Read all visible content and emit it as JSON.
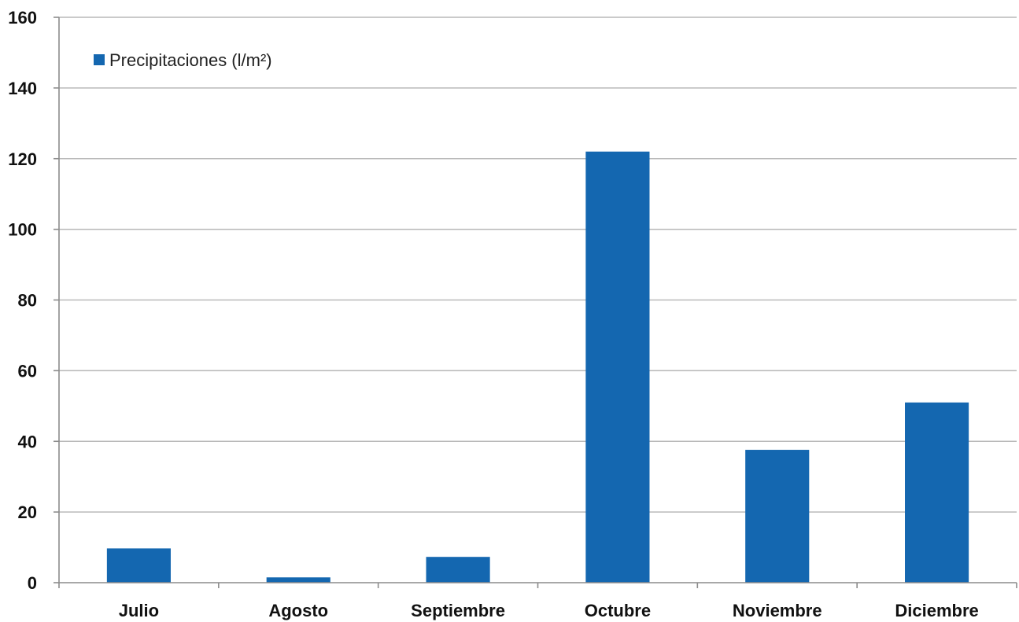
{
  "chart_data": {
    "type": "bar",
    "categories": [
      "Julio",
      "Agosto",
      "Septiembre",
      "Octubre",
      "Noviembre",
      "Diciembre"
    ],
    "series": [
      {
        "name": "Precipitaciones (l/m²)",
        "values": [
          9.7,
          1.5,
          7.3,
          122.0,
          37.6,
          51.0
        ],
        "color": "#1467b0"
      }
    ],
    "yticks": [
      "0",
      "20",
      "40",
      "60",
      "80",
      "100",
      "120",
      "140",
      "160"
    ],
    "ylim": [
      0,
      160
    ],
    "grid": true,
    "legend": "top-left",
    "title": "",
    "xlabel": "",
    "ylabel": ""
  }
}
